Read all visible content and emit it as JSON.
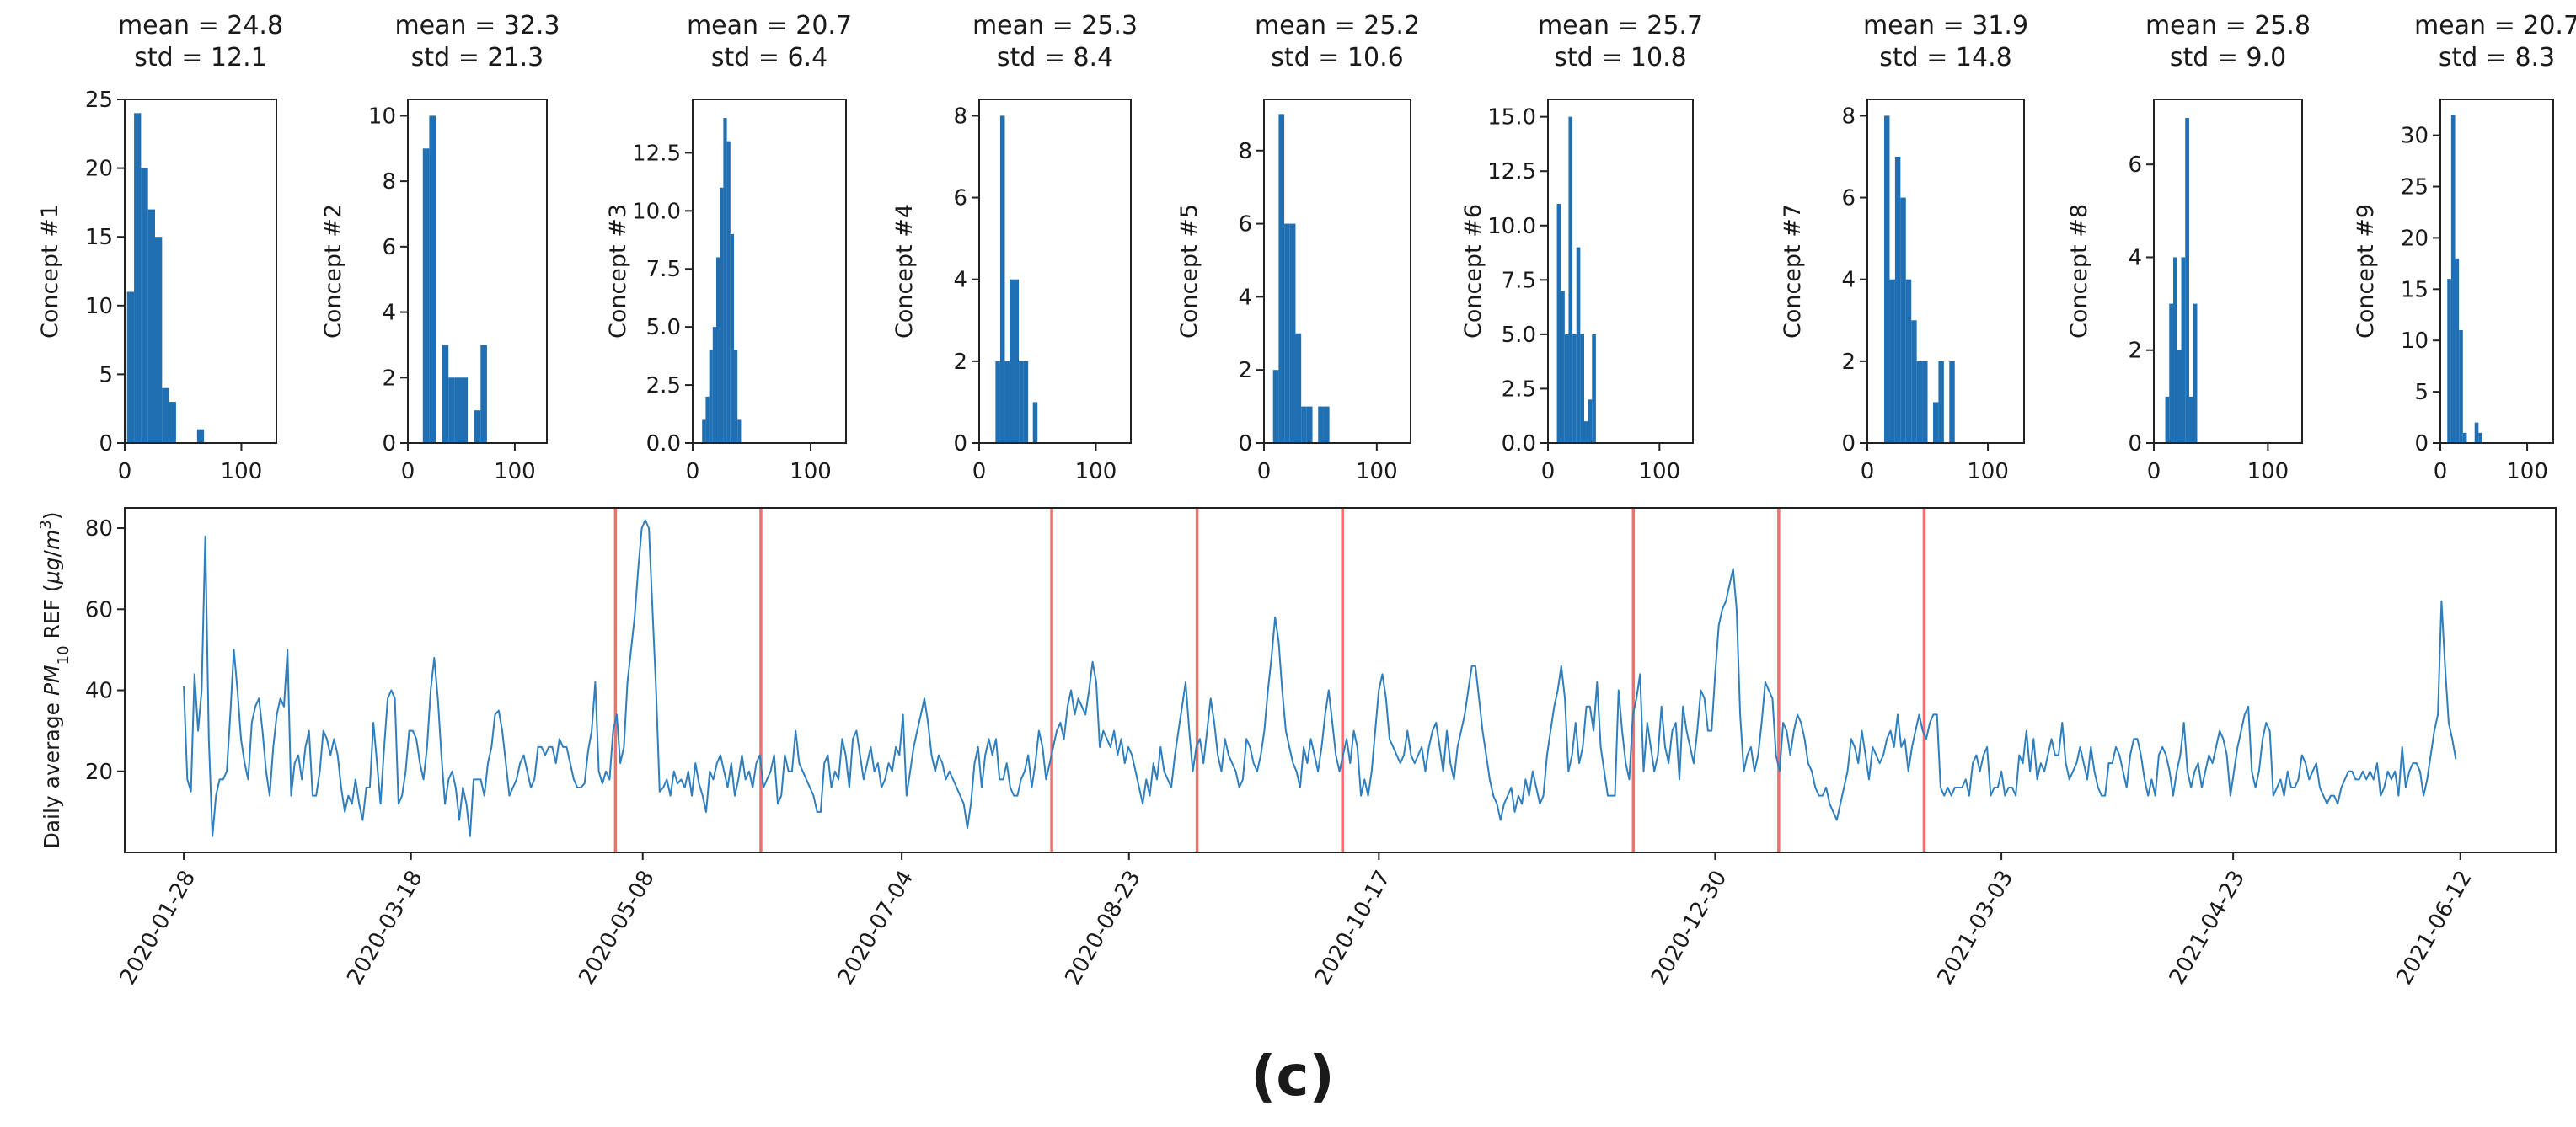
{
  "figure_label": "(c)",
  "chart_data": [
    {
      "type": "bar",
      "title_lines": [
        "mean = 24.8",
        "std = 12.1"
      ],
      "ylabel": "Concept #1",
      "xlim": [
        0,
        130
      ],
      "ylim": [
        0,
        25
      ],
      "xticks": [
        0,
        100
      ],
      "yticks": [
        0,
        5,
        10,
        15,
        20,
        25
      ],
      "ytick_labels": [
        "0",
        "5",
        "10",
        "15",
        "20",
        "25"
      ],
      "bins_start": 2,
      "bin_width": 6,
      "counts": [
        11,
        24,
        20,
        17,
        15,
        4,
        3,
        0,
        0,
        0,
        1,
        0
      ]
    },
    {
      "type": "bar",
      "title_lines": [
        "mean = 32.3",
        "std = 21.3"
      ],
      "ylabel": "Concept #2",
      "xlim": [
        0,
        130
      ],
      "ylim": [
        0,
        10.5
      ],
      "xticks": [
        0,
        100
      ],
      "yticks": [
        0,
        2,
        4,
        6,
        8,
        10
      ],
      "ytick_labels": [
        "0",
        "2",
        "4",
        "6",
        "8",
        "10"
      ],
      "bins_start": 14,
      "bin_width": 6,
      "counts": [
        9,
        10,
        0,
        3,
        2,
        2,
        2,
        0,
        1,
        3
      ]
    },
    {
      "type": "bar",
      "title_lines": [
        "mean = 20.7",
        "std = 6.4"
      ],
      "ylabel": "Concept #3",
      "xlim": [
        0,
        130
      ],
      "ylim": [
        0,
        14.8
      ],
      "xticks": [
        0,
        100
      ],
      "yticks": [
        0,
        2.5,
        5,
        7.5,
        10,
        12.5
      ],
      "ytick_labels": [
        "0.0",
        "2.5",
        "5.0",
        "7.5",
        "10.0",
        "12.5"
      ],
      "bins_start": 8,
      "bin_width": 3,
      "counts": [
        1,
        2,
        4,
        5,
        8,
        11,
        14,
        13,
        9,
        4,
        1
      ]
    },
    {
      "type": "bar",
      "title_lines": [
        "mean = 25.3",
        "std = 8.4"
      ],
      "ylabel": "Concept #4",
      "xlim": [
        0,
        130
      ],
      "ylim": [
        0,
        8.4
      ],
      "xticks": [
        0,
        100
      ],
      "yticks": [
        0,
        2,
        4,
        6,
        8
      ],
      "ytick_labels": [
        "0",
        "2",
        "4",
        "6",
        "8"
      ],
      "bins_start": 14,
      "bin_width": 4,
      "counts": [
        2,
        8,
        2,
        4,
        4,
        2,
        2,
        0,
        1
      ]
    },
    {
      "type": "bar",
      "title_lines": [
        "mean = 25.2",
        "std = 10.6"
      ],
      "ylabel": "Concept #5",
      "xlim": [
        0,
        130
      ],
      "ylim": [
        0,
        9.4
      ],
      "xticks": [
        0,
        100
      ],
      "yticks": [
        0,
        2,
        4,
        6,
        8
      ],
      "ytick_labels": [
        "0",
        "2",
        "4",
        "6",
        "8"
      ],
      "bins_start": 8,
      "bin_width": 5,
      "counts": [
        2,
        9,
        6,
        6,
        3,
        1,
        1,
        0,
        1,
        1
      ]
    },
    {
      "type": "bar",
      "title_lines": [
        "mean = 25.7",
        "std = 10.8"
      ],
      "ylabel": "Concept #6",
      "xlim": [
        0,
        130
      ],
      "ylim": [
        0,
        15.8
      ],
      "xticks": [
        0,
        100
      ],
      "yticks": [
        0,
        2.5,
        5,
        7.5,
        10,
        12.5,
        15
      ],
      "ytick_labels": [
        "0.0",
        "2.5",
        "5.0",
        "7.5",
        "10.0",
        "12.5",
        "15.0"
      ],
      "bins_start": 8,
      "bin_width": 3.5,
      "counts": [
        11,
        7,
        5,
        15,
        5,
        9,
        5,
        1,
        2,
        5
      ]
    },
    {
      "type": "bar",
      "title_lines": [
        "mean = 31.9",
        "std = 14.8"
      ],
      "ylabel": "Concept #7",
      "xlim": [
        0,
        130
      ],
      "ylim": [
        0,
        8.4
      ],
      "xticks": [
        0,
        100
      ],
      "yticks": [
        0,
        2,
        4,
        6,
        8
      ],
      "ytick_labels": [
        "0",
        "2",
        "4",
        "6",
        "8"
      ],
      "bins_start": 14,
      "bin_width": 4.5,
      "counts": [
        8,
        4,
        7,
        6,
        4,
        3,
        2,
        2,
        0,
        1,
        2,
        0,
        2
      ]
    },
    {
      "type": "bar",
      "title_lines": [
        "mean = 25.8",
        "std = 9.0"
      ],
      "ylabel": "Concept #8",
      "xlim": [
        0,
        130
      ],
      "ylim": [
        0,
        7.4
      ],
      "xticks": [
        0,
        100
      ],
      "yticks": [
        0,
        2,
        4,
        6
      ],
      "ytick_labels": [
        "0",
        "2",
        "4",
        "6"
      ],
      "bins_start": 10,
      "bin_width": 3.5,
      "counts": [
        1,
        3,
        4,
        2,
        4,
        7,
        1,
        3
      ]
    },
    {
      "type": "bar",
      "title_lines": [
        "mean = 20.7",
        "std = 8.3"
      ],
      "ylabel": "Concept #9",
      "xlim": [
        0,
        130
      ],
      "ylim": [
        0,
        33.5
      ],
      "xticks": [
        0,
        100
      ],
      "yticks": [
        0,
        5,
        10,
        15,
        20,
        25,
        30
      ],
      "ytick_labels": [
        "0",
        "5",
        "10",
        "15",
        "20",
        "25",
        "30"
      ],
      "bins_start": 8,
      "bin_width": 4.5,
      "counts": [
        16,
        32,
        18,
        11,
        1,
        0,
        0,
        2,
        1
      ]
    },
    {
      "type": "line",
      "ylabel": "Daily average PM10 REF (μg/m3)",
      "ylabel_parts": {
        "pre": "Daily average ",
        "sym": "PM",
        "sub": "10",
        "mid": " REF (",
        "mu": "μg",
        "slash": "/",
        "m": "m",
        "sup": "3",
        "post": ")"
      },
      "x_start_date": "2020-01-28",
      "x_domain_days": [
        -13,
        522
      ],
      "ylim": [
        0,
        85
      ],
      "yticks": [
        20,
        40,
        60,
        80
      ],
      "xtick_labels": [
        "2020-01-28",
        "2020-03-18",
        "2020-05-08",
        "2020-07-04",
        "2020-08-23",
        "2020-10-17",
        "2020-12-30",
        "2021-03-03",
        "2021-04-23",
        "2021-06-12"
      ],
      "xtick_days": [
        0,
        50,
        101,
        158,
        208,
        263,
        337,
        400,
        451,
        501
      ],
      "change_points_days": [
        95,
        127,
        191,
        223,
        255,
        319,
        351,
        383
      ],
      "series_color": "#2f7fbf",
      "change_point_color": "#f07070",
      "values": [
        41,
        18,
        15,
        44,
        30,
        40,
        78,
        28,
        4,
        14,
        18,
        18,
        20,
        34,
        50,
        40,
        28,
        22,
        18,
        32,
        36,
        38,
        30,
        20,
        14,
        26,
        34,
        38,
        36,
        50,
        14,
        22,
        24,
        18,
        26,
        30,
        14,
        14,
        20,
        30,
        28,
        24,
        28,
        24,
        16,
        10,
        14,
        12,
        18,
        12,
        8,
        16,
        16,
        32,
        22,
        12,
        26,
        38,
        40,
        38,
        12,
        14,
        20,
        30,
        30,
        28,
        22,
        18,
        26,
        40,
        48,
        38,
        24,
        12,
        18,
        20,
        16,
        8,
        16,
        12,
        4,
        18,
        18,
        18,
        14,
        22,
        26,
        34,
        35,
        30,
        22,
        14,
        16,
        18,
        22,
        24,
        20,
        16,
        18,
        26,
        26,
        24,
        26,
        26,
        22,
        28,
        26,
        26,
        22,
        18,
        16,
        16,
        17,
        25,
        30,
        42,
        20,
        17,
        20,
        18,
        30,
        34,
        22,
        26,
        42,
        50,
        58,
        70,
        80,
        82,
        80,
        60,
        40,
        15,
        16,
        18,
        14,
        20,
        17,
        18,
        16,
        20,
        14,
        22,
        17,
        14,
        10,
        20,
        18,
        22,
        24,
        20,
        16,
        22,
        14,
        18,
        24,
        18,
        20,
        16,
        22,
        24,
        16,
        18,
        20,
        24,
        12,
        14,
        24,
        20,
        20,
        30,
        22,
        20,
        18,
        16,
        14,
        10,
        10,
        22,
        24,
        16,
        20,
        18,
        28,
        24,
        16,
        28,
        30,
        24,
        18,
        22,
        26,
        20,
        22,
        16,
        18,
        22,
        20,
        26,
        24,
        34,
        14,
        20,
        26,
        30,
        34,
        38,
        32,
        24,
        20,
        24,
        22,
        18,
        20,
        18,
        16,
        14,
        12,
        6,
        12,
        22,
        26,
        16,
        24,
        28,
        24,
        28,
        18,
        18,
        22,
        16,
        14,
        14,
        18,
        20,
        24,
        16,
        22,
        30,
        26,
        18,
        22,
        26,
        30,
        32,
        28,
        36,
        40,
        34,
        38,
        36,
        34,
        40,
        47,
        42,
        26,
        30,
        28,
        26,
        30,
        24,
        28,
        22,
        26,
        24,
        20,
        16,
        12,
        18,
        14,
        22,
        18,
        26,
        20,
        18,
        16,
        24,
        30,
        36,
        42,
        30,
        20,
        26,
        28,
        22,
        30,
        38,
        32,
        24,
        20,
        28,
        24,
        22,
        20,
        16,
        18,
        28,
        26,
        22,
        20,
        24,
        30,
        40,
        48,
        58,
        52,
        40,
        30,
        26,
        22,
        20,
        16,
        26,
        22,
        28,
        24,
        20,
        26,
        34,
        40,
        32,
        24,
        20,
        24,
        28,
        22,
        30,
        26,
        14,
        18,
        14,
        20,
        30,
        40,
        44,
        38,
        28,
        26,
        24,
        22,
        24,
        30,
        24,
        22,
        24,
        26,
        20,
        26,
        30,
        32,
        26,
        20,
        30,
        22,
        18,
        26,
        30,
        34,
        40,
        46,
        46,
        38,
        30,
        24,
        18,
        14,
        12,
        8,
        12,
        14,
        16,
        10,
        14,
        12,
        18,
        14,
        20,
        16,
        12,
        14,
        24,
        30,
        36,
        40,
        46,
        38,
        20,
        24,
        32,
        22,
        26,
        36,
        36,
        30,
        42,
        26,
        20,
        14,
        14,
        14,
        40,
        30,
        22,
        18,
        34,
        38,
        44,
        20,
        32,
        26,
        20,
        24,
        36,
        26,
        22,
        30,
        32,
        18,
        36,
        30,
        26,
        22,
        30,
        40,
        38,
        30,
        30,
        44,
        56,
        60,
        62,
        66,
        70,
        60,
        34,
        20,
        24,
        26,
        20,
        24,
        32,
        42,
        40,
        38,
        24,
        20,
        32,
        30,
        24,
        30,
        34,
        32,
        28,
        22,
        20,
        16,
        14,
        14,
        16,
        12,
        10,
        8,
        12,
        16,
        20,
        28,
        26,
        22,
        30,
        24,
        18,
        26,
        24,
        22,
        24,
        28,
        30,
        26,
        34,
        26,
        28,
        20,
        26,
        30,
        34,
        30,
        28,
        32,
        34,
        34,
        16,
        14,
        16,
        14,
        16,
        16,
        16,
        18,
        14,
        22,
        24,
        20,
        24,
        26,
        14,
        16,
        16,
        20,
        14,
        16,
        16,
        14,
        24,
        22,
        30,
        20,
        28,
        18,
        22,
        20,
        24,
        28,
        24,
        24,
        32,
        22,
        18,
        20,
        22,
        26,
        22,
        18,
        26,
        20,
        16,
        14,
        14,
        22,
        22,
        26,
        24,
        20,
        16,
        24,
        28,
        28,
        24,
        18,
        14,
        18,
        14,
        24,
        26,
        24,
        20,
        14,
        20,
        24,
        32,
        20,
        16,
        20,
        22,
        16,
        20,
        24,
        22,
        26,
        30,
        28,
        24,
        14,
        20,
        26,
        30,
        34,
        36,
        20,
        16,
        20,
        28,
        32,
        30,
        14,
        16,
        18,
        14,
        20,
        16,
        16,
        18,
        24,
        22,
        18,
        20,
        22,
        16,
        14,
        12,
        14,
        14,
        12,
        16,
        18,
        20,
        20,
        18,
        18,
        20,
        18,
        20,
        18,
        22,
        14,
        16,
        20,
        18,
        20,
        14,
        26,
        16,
        20,
        22,
        22,
        20,
        14,
        18,
        24,
        30,
        34,
        62,
        46,
        32,
        28,
        23
      ]
    }
  ]
}
